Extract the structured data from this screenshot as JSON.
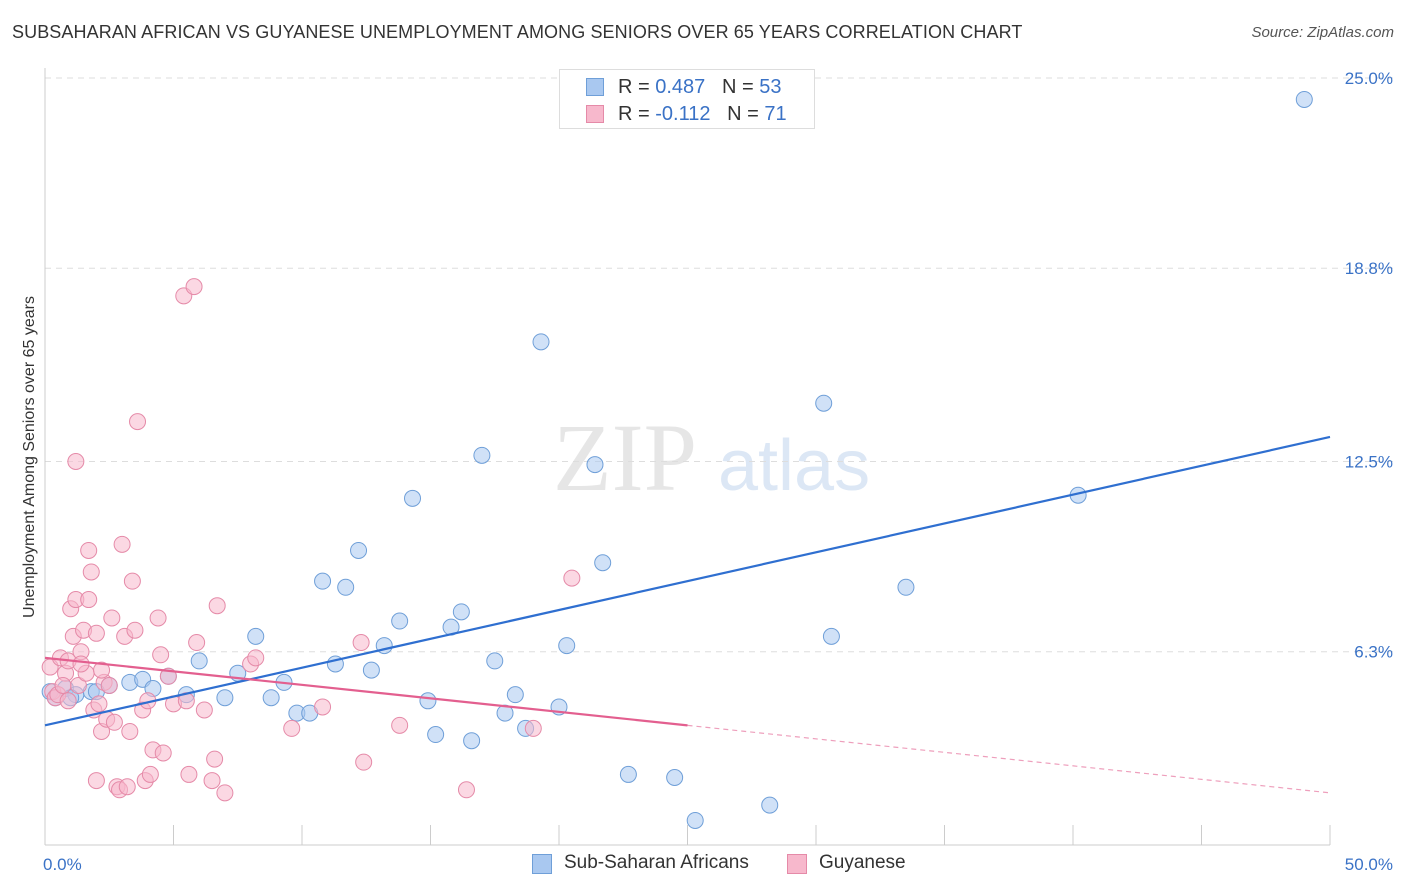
{
  "title": "SUBSAHARAN AFRICAN VS GUYANESE UNEMPLOYMENT AMONG SENIORS OVER 65 YEARS CORRELATION CHART",
  "source": "Source: ZipAtlas.com",
  "watermark": {
    "zip": "ZIP",
    "atlas": "atlas"
  },
  "legend": {
    "rows": [
      {
        "r_label": "R = ",
        "r_value": "0.487",
        "n_label": "N = ",
        "n_value": "53",
        "color": "#a9c8f0"
      },
      {
        "r_label": "R = ",
        "r_value": "-0.112",
        "n_label": "N = ",
        "n_value": "71",
        "color": "#f7b8cc"
      }
    ]
  },
  "bottom_legend": {
    "items": [
      {
        "label": "Sub-Saharan Africans",
        "color": "#a9c8f0"
      },
      {
        "label": "Guyanese",
        "color": "#f7b8cc"
      }
    ]
  },
  "chart_data": {
    "type": "scatter",
    "title": "SUBSAHARAN AFRICAN VS GUYANESE UNEMPLOYMENT AMONG SENIORS OVER 65 YEARS CORRELATION CHART",
    "xlabel": "",
    "ylabel": "Unemployment Among Seniors over 65 years",
    "xlim": [
      0,
      50
    ],
    "ylim": [
      0,
      25
    ],
    "x_tick_labels": [
      "0.0%",
      "50.0%"
    ],
    "y_ticks": [
      6.3,
      12.5,
      18.8,
      25.0
    ],
    "y_tick_labels": [
      "6.3%",
      "12.5%",
      "18.8%",
      "25.0%"
    ],
    "grid": true,
    "series": [
      {
        "name": "Sub-Saharan Africans",
        "color": "#a9c8f0",
        "edge": "#6f9fd8",
        "trend": {
          "x": [
            0,
            50
          ],
          "y": [
            3.9,
            13.3
          ],
          "color": "#2f6fd0",
          "dashed_from": null
        },
        "points": [
          [
            0.2,
            5.0
          ],
          [
            0.4,
            4.8
          ],
          [
            0.8,
            5.1
          ],
          [
            1.2,
            4.9
          ],
          [
            1.8,
            5.0
          ],
          [
            2.5,
            5.2
          ],
          [
            3.3,
            5.3
          ],
          [
            3.8,
            5.4
          ],
          [
            4.2,
            5.1
          ],
          [
            4.8,
            5.5
          ],
          [
            5.5,
            4.9
          ],
          [
            6.0,
            6.0
          ],
          [
            7.0,
            4.8
          ],
          [
            7.5,
            5.6
          ],
          [
            8.2,
            6.8
          ],
          [
            8.8,
            4.8
          ],
          [
            9.3,
            5.3
          ],
          [
            9.8,
            4.3
          ],
          [
            10.3,
            4.3
          ],
          [
            10.8,
            8.6
          ],
          [
            11.3,
            5.9
          ],
          [
            11.7,
            8.4
          ],
          [
            12.2,
            9.6
          ],
          [
            12.7,
            5.7
          ],
          [
            13.2,
            6.5
          ],
          [
            13.8,
            7.3
          ],
          [
            14.3,
            11.3
          ],
          [
            14.9,
            4.7
          ],
          [
            15.2,
            3.6
          ],
          [
            15.8,
            7.1
          ],
          [
            16.2,
            7.6
          ],
          [
            16.6,
            3.4
          ],
          [
            17.0,
            12.7
          ],
          [
            17.5,
            6.0
          ],
          [
            17.9,
            4.3
          ],
          [
            18.3,
            4.9
          ],
          [
            18.7,
            3.8
          ],
          [
            19.3,
            16.4
          ],
          [
            20.0,
            4.5
          ],
          [
            20.3,
            6.5
          ],
          [
            21.4,
            12.4
          ],
          [
            21.7,
            9.2
          ],
          [
            22.7,
            2.3
          ],
          [
            24.5,
            2.2
          ],
          [
            25.3,
            0.8
          ],
          [
            28.2,
            1.3
          ],
          [
            30.3,
            14.4
          ],
          [
            30.6,
            6.8
          ],
          [
            33.5,
            8.4
          ],
          [
            40.2,
            11.4
          ],
          [
            49.0,
            24.3
          ],
          [
            1.0,
            4.8
          ],
          [
            2.0,
            5.0
          ]
        ]
      },
      {
        "name": "Guyanese",
        "color": "#f7b8cc",
        "edge": "#e58aa8",
        "trend": {
          "x": [
            0,
            50
          ],
          "y": [
            6.1,
            1.7
          ],
          "color": "#e35f8f",
          "dashed_from": 25
        },
        "points": [
          [
            0.2,
            5.8
          ],
          [
            0.3,
            5.0
          ],
          [
            0.4,
            4.8
          ],
          [
            0.6,
            6.1
          ],
          [
            0.8,
            5.6
          ],
          [
            0.9,
            6.0
          ],
          [
            1.0,
            7.7
          ],
          [
            1.1,
            6.8
          ],
          [
            1.2,
            8.0
          ],
          [
            1.3,
            5.2
          ],
          [
            1.4,
            6.3
          ],
          [
            1.5,
            7.0
          ],
          [
            1.6,
            5.6
          ],
          [
            1.7,
            8.0
          ],
          [
            1.7,
            9.6
          ],
          [
            1.8,
            8.9
          ],
          [
            1.9,
            4.4
          ],
          [
            2.0,
            2.1
          ],
          [
            2.0,
            6.9
          ],
          [
            2.1,
            4.6
          ],
          [
            2.2,
            3.7
          ],
          [
            2.3,
            5.3
          ],
          [
            2.4,
            4.1
          ],
          [
            2.5,
            5.2
          ],
          [
            2.6,
            7.4
          ],
          [
            2.7,
            4.0
          ],
          [
            2.8,
            1.9
          ],
          [
            2.9,
            1.8
          ],
          [
            3.0,
            9.8
          ],
          [
            3.1,
            6.8
          ],
          [
            3.2,
            1.9
          ],
          [
            3.3,
            3.7
          ],
          [
            3.4,
            8.6
          ],
          [
            3.5,
            7.0
          ],
          [
            3.6,
            13.8
          ],
          [
            3.8,
            4.4
          ],
          [
            3.9,
            2.1
          ],
          [
            4.0,
            4.7
          ],
          [
            4.1,
            2.3
          ],
          [
            4.2,
            3.1
          ],
          [
            4.4,
            7.4
          ],
          [
            4.5,
            6.2
          ],
          [
            4.6,
            3.0
          ],
          [
            4.8,
            5.5
          ],
          [
            5.0,
            4.6
          ],
          [
            5.4,
            17.9
          ],
          [
            5.5,
            4.7
          ],
          [
            5.6,
            2.3
          ],
          [
            5.8,
            18.2
          ],
          [
            5.9,
            6.6
          ],
          [
            6.2,
            4.4
          ],
          [
            6.5,
            2.1
          ],
          [
            6.6,
            2.8
          ],
          [
            6.7,
            7.8
          ],
          [
            7.0,
            1.7
          ],
          [
            8.0,
            5.9
          ],
          [
            8.2,
            6.1
          ],
          [
            9.6,
            3.8
          ],
          [
            10.8,
            4.5
          ],
          [
            12.3,
            6.6
          ],
          [
            12.4,
            2.7
          ],
          [
            13.8,
            3.9
          ],
          [
            16.4,
            1.8
          ],
          [
            19.0,
            3.8
          ],
          [
            20.5,
            8.7
          ],
          [
            0.5,
            4.9
          ],
          [
            1.2,
            12.5
          ],
          [
            0.7,
            5.2
          ],
          [
            0.9,
            4.7
          ],
          [
            1.4,
            5.9
          ],
          [
            2.2,
            5.7
          ]
        ]
      }
    ]
  }
}
